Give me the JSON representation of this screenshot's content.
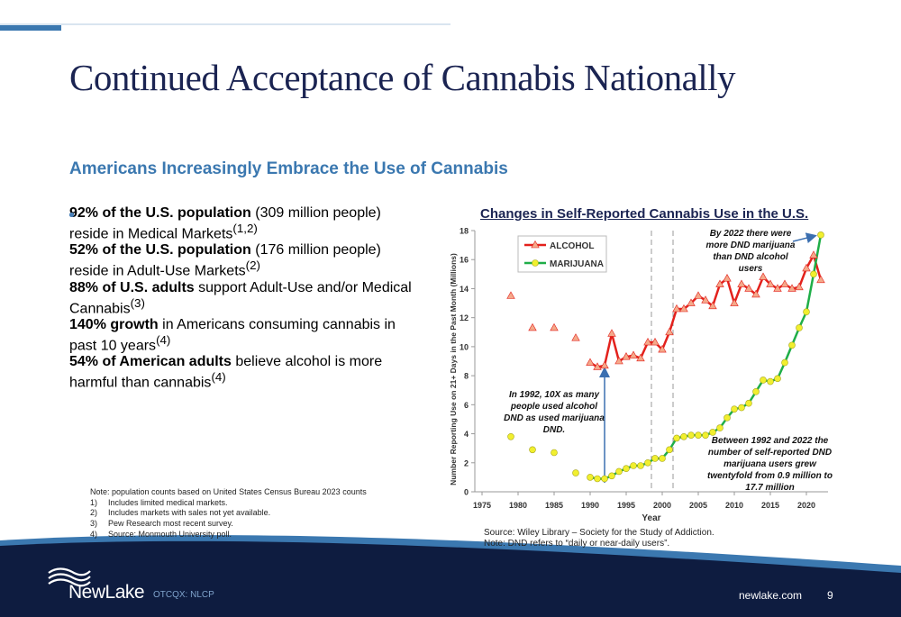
{
  "header": {
    "title": "Continued Acceptance of Cannabis Nationally",
    "subtitle": "Americans Increasingly Embrace the Use of Cannabis"
  },
  "bullets": [
    {
      "bold": "92% of the U.S. population",
      "text": "(309 million people) reside in Medical Markets",
      "sup": "(1,2)"
    },
    {
      "bold": "52% of the U.S. population",
      "text": "(176 million people) reside in Adult-Use Markets",
      "sup": "(2)"
    },
    {
      "bold": "88% of U.S. adults",
      "text": "support Adult-Use and/or Medical Cannabis",
      "sup": "(3)"
    },
    {
      "bold": "140% growth",
      "text": "in Americans consuming cannabis in past 10 years",
      "sup": "(4)"
    },
    {
      "bold": "54% of American adults",
      "text": "believe alcohol is more harmful than cannabis",
      "sup": "(4)"
    }
  ],
  "notes": {
    "heading": "Note: population counts based on United States Census Bureau 2023 counts",
    "items": [
      {
        "num": "1)",
        "text": "Includes limited medical markets."
      },
      {
        "num": "2)",
        "text": "Includes markets with sales not yet available."
      },
      {
        "num": "3)",
        "text": "Pew Research most recent survey."
      },
      {
        "num": "4)",
        "text": "Source: Monmouth University poll."
      }
    ]
  },
  "chart_data": {
    "type": "line",
    "title": "Changes in Self-Reported Cannabis Use in the U.S.",
    "x_label": "Year",
    "y_label": "Number Reporting Use on 21+ Days in the Past Month (Millions)",
    "x": [
      1979,
      1981,
      1982,
      1984,
      1985,
      1987,
      1988,
      1989,
      1990,
      1991,
      1992,
      1993,
      1994,
      1995,
      1996,
      1997,
      1998,
      1999,
      2000,
      2001,
      2002,
      2003,
      2004,
      2005,
      2006,
      2007,
      2008,
      2009,
      2010,
      2011,
      2012,
      2013,
      2014,
      2015,
      2016,
      2017,
      2018,
      2019,
      2020,
      2021,
      2022
    ],
    "series": [
      {
        "name": "ALCOHOL",
        "color": "#e3211c",
        "marker": "triangle",
        "marker_color": "#f4a98a",
        "values": [
          13.5,
          null,
          11.3,
          null,
          11.3,
          null,
          10.6,
          null,
          8.9,
          8.6,
          8.7,
          10.9,
          9.0,
          9.3,
          9.4,
          9.2,
          10.3,
          10.3,
          9.8,
          11.0,
          12.6,
          12.6,
          13.0,
          13.5,
          13.2,
          12.8,
          14.3,
          14.7,
          13.0,
          14.3,
          14.0,
          13.6,
          14.8,
          14.3,
          14.0,
          14.3,
          14.0,
          14.1,
          15.4,
          16.3,
          14.6
        ]
      },
      {
        "name": "MARIJUANA",
        "color": "#1fae48",
        "marker": "circle",
        "marker_color": "#f1ef2e",
        "values": [
          3.8,
          null,
          2.9,
          null,
          2.7,
          null,
          1.3,
          null,
          1.0,
          0.9,
          0.9,
          1.1,
          1.4,
          1.6,
          1.8,
          1.8,
          2.0,
          2.3,
          2.3,
          2.9,
          3.7,
          3.8,
          3.9,
          3.9,
          3.9,
          4.1,
          4.4,
          5.1,
          5.7,
          5.8,
          6.1,
          6.9,
          7.7,
          7.6,
          7.8,
          8.9,
          10.1,
          11.3,
          12.4,
          15.0,
          17.7
        ]
      }
    ],
    "xlim": [
      1974,
      2023
    ],
    "xticks": [
      1975,
      1980,
      1985,
      1990,
      1995,
      2000,
      2005,
      2010,
      2015,
      2020
    ],
    "ylim": [
      0,
      18
    ],
    "yticks": [
      0,
      2,
      4,
      6,
      8,
      10,
      12,
      14,
      16,
      18
    ],
    "vlines": [
      1998.5,
      2001.5
    ],
    "legend": "upper left",
    "annotations": [
      "In 1992, 10X as many people used alcohol DND as used marijuana DND.",
      "By 2022  there were more DND marijuana than DND alcohol users",
      "Between 1992 and 2022 the number of self-reported DND marijuana users grew twentyfold from 0.9 million to 17.7 million"
    ],
    "source": "Source: Wiley Library – Society for the Study of Addiction.",
    "note": "Note: DND refers to “daily or near-daily users”."
  },
  "footer": {
    "logo": "NewLake",
    "ticker": "OTCQX: NLCP",
    "website": "newlake.com",
    "page": "9"
  }
}
